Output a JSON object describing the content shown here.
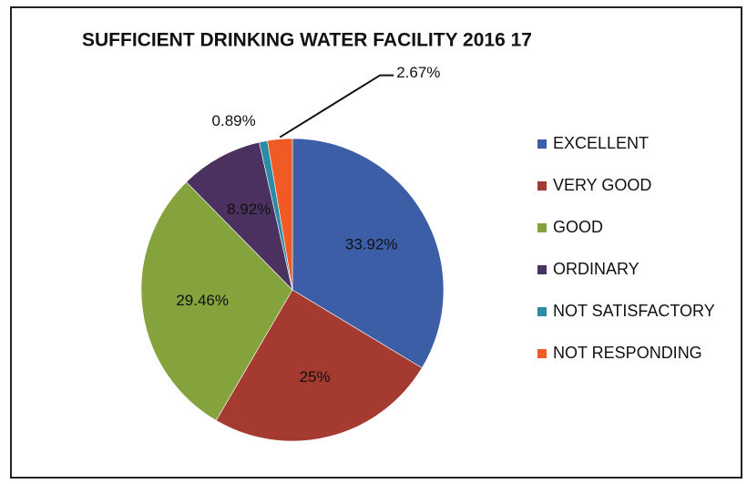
{
  "chart_data": {
    "type": "pie",
    "title": "SUFFICIENT DRINKING WATER FACILITY 2016 17",
    "categories": [
      "EXCELLENT",
      "VERY GOOD",
      "GOOD",
      "ORDINARY",
      "NOT SATISFACTORY",
      "NOT RESPONDING"
    ],
    "values": [
      33.92,
      25,
      29.46,
      8.92,
      0.89,
      2.67
    ],
    "value_labels": [
      "33.92%",
      "25%",
      "29.46%",
      "8.92%",
      "0.89%",
      "2.67%"
    ],
    "colors": [
      "#3b5ea6",
      "#a53a30",
      "#84a33c",
      "#4b3160",
      "#2e8ba6",
      "#f05a24"
    ],
    "legend": "right"
  }
}
